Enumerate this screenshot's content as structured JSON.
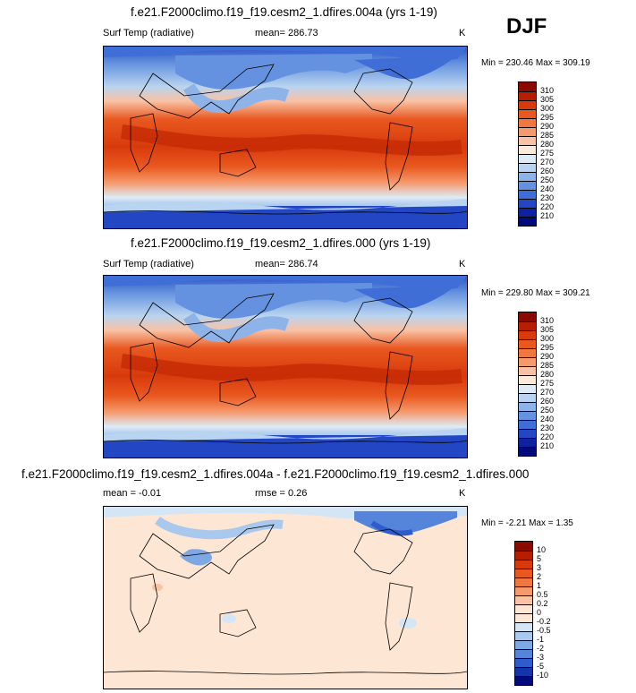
{
  "season": "DJF",
  "panels": [
    {
      "title": "f.e21.F2000climo.f19_f19.cesm2_1.dfires.004a (yrs 1-19)",
      "variable": "Surf Temp (radiative)",
      "stat": "mean= 286.73",
      "units": "K",
      "minmax": "Min = 230.46 Max = 309.19",
      "colorbar_labels": [
        "310",
        "305",
        "300",
        "295",
        "290",
        "285",
        "280",
        "275",
        "270",
        "260",
        "250",
        "240",
        "230",
        "220",
        "210"
      ],
      "colorbar_colors": [
        "#8b0a00",
        "#b71d00",
        "#d83a0c",
        "#e8581f",
        "#f07840",
        "#f59a6d",
        "#f9c2a4",
        "#fdebd9",
        "#ddebf6",
        "#b9d4f0",
        "#8eb3e8",
        "#6592e0",
        "#3f6ed6",
        "#2246c4",
        "#0d22a0",
        "#000a7a"
      ]
    },
    {
      "title": "f.e21.F2000climo.f19_f19.cesm2_1.dfires.000 (yrs 1-19)",
      "variable": "Surf Temp (radiative)",
      "stat": "mean= 286.74",
      "units": "K",
      "minmax": "Min = 229.80 Max = 309.21",
      "colorbar_labels": [
        "310",
        "305",
        "300",
        "295",
        "290",
        "285",
        "280",
        "275",
        "270",
        "260",
        "250",
        "240",
        "230",
        "220",
        "210"
      ],
      "colorbar_colors": [
        "#8b0a00",
        "#b71d00",
        "#d83a0c",
        "#e8581f",
        "#f07840",
        "#f59a6d",
        "#f9c2a4",
        "#fdebd9",
        "#ddebf6",
        "#b9d4f0",
        "#8eb3e8",
        "#6592e0",
        "#3f6ed6",
        "#2246c4",
        "#0d22a0",
        "#000a7a"
      ]
    },
    {
      "title": "f.e21.F2000climo.f19_f19.cesm2_1.dfires.004a - f.e21.F2000climo.f19_f19.cesm2_1.dfires.000",
      "stat": "mean =  -0.01",
      "stat2": "rmse =  0.26",
      "units": "K",
      "minmax": "Min =  -2.21 Max =  1.35",
      "colorbar_labels": [
        "10",
        "5",
        "3",
        "2",
        "1",
        "0.5",
        "0.2",
        "0",
        "-0.2",
        "-0.5",
        "-1",
        "-2",
        "-3",
        "-5",
        "-10"
      ],
      "colorbar_colors": [
        "#8b0a00",
        "#b71d00",
        "#d83a0c",
        "#e8581f",
        "#f07840",
        "#f59a6d",
        "#f9c2a4",
        "#fde7d4",
        "#fde7d4",
        "#d4e5f5",
        "#a9c8ee",
        "#7ea8e4",
        "#5585da",
        "#2e5ccc",
        "#1534ae",
        "#000a7a"
      ]
    }
  ]
}
